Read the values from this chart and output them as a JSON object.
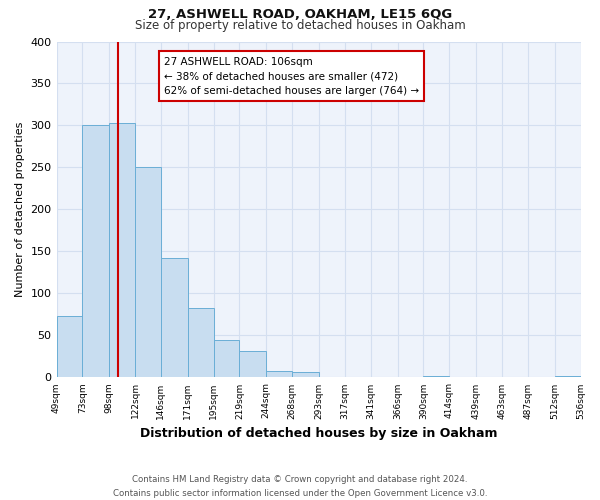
{
  "title": "27, ASHWELL ROAD, OAKHAM, LE15 6QG",
  "subtitle": "Size of property relative to detached houses in Oakham",
  "xlabel": "Distribution of detached houses by size in Oakham",
  "ylabel": "Number of detached properties",
  "bin_edges": [
    49,
    73,
    98,
    122,
    146,
    171,
    195,
    219,
    244,
    268,
    293,
    317,
    341,
    366,
    390,
    414,
    439,
    463,
    487,
    512,
    536
  ],
  "bar_heights": [
    73,
    300,
    303,
    250,
    142,
    83,
    44,
    32,
    8,
    6,
    0,
    0,
    0,
    0,
    2,
    0,
    0,
    0,
    0,
    2
  ],
  "bar_color": "#c8ddf0",
  "bar_edge_color": "#6aaed6",
  "x_tick_labels": [
    "49sqm",
    "73sqm",
    "98sqm",
    "122sqm",
    "146sqm",
    "171sqm",
    "195sqm",
    "219sqm",
    "244sqm",
    "268sqm",
    "293sqm",
    "317sqm",
    "341sqm",
    "366sqm",
    "390sqm",
    "414sqm",
    "439sqm",
    "463sqm",
    "487sqm",
    "512sqm",
    "536sqm"
  ],
  "ylim": [
    0,
    400
  ],
  "yticks": [
    0,
    50,
    100,
    150,
    200,
    250,
    300,
    350,
    400
  ],
  "property_line_x": 106,
  "property_line_color": "#cc0000",
  "annotation_text": "27 ASHWELL ROAD: 106sqm\n← 38% of detached houses are smaller (472)\n62% of semi-detached houses are larger (764) →",
  "grid_color": "#d4dff0",
  "background_color": "#eef3fb",
  "footer_line1": "Contains HM Land Registry data © Crown copyright and database right 2024.",
  "footer_line2": "Contains public sector information licensed under the Open Government Licence v3.0."
}
